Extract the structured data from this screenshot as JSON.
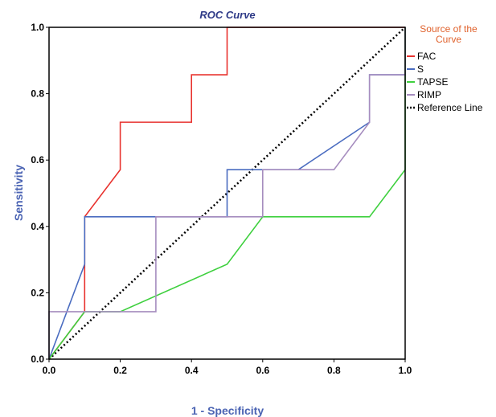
{
  "chart_data": {
    "type": "line",
    "title": "ROC Curve",
    "xlabel": "1 - Specificity",
    "ylabel": "Sensitivity",
    "xlim": [
      0,
      1
    ],
    "ylim": [
      0,
      1
    ],
    "x_ticks": [
      "0.0",
      "0.2",
      "0.4",
      "0.6",
      "0.8",
      "1.0"
    ],
    "y_ticks": [
      "0.0",
      "0.2",
      "0.4",
      "0.6",
      "0.8",
      "1.0"
    ],
    "grid": false,
    "legend": {
      "title_line1": "Source of the",
      "title_line2": "Curve",
      "placement": "right"
    },
    "colors": {
      "title": "#2e3a87",
      "axis_label": "#4a63b3",
      "legend_title": "#e0622d"
    },
    "series": [
      {
        "name": "FAC",
        "color": "#e8322e",
        "style": "solid",
        "points": [
          [
            0,
            0
          ],
          [
            0.1,
            0.143
          ],
          [
            0.1,
            0.429
          ],
          [
            0.2,
            0.571
          ],
          [
            0.2,
            0.714
          ],
          [
            0.4,
            0.714
          ],
          [
            0.4,
            0.857
          ],
          [
            0.5,
            0.857
          ],
          [
            0.5,
            1.0
          ],
          [
            1.0,
            1.0
          ]
        ]
      },
      {
        "name": "S",
        "color": "#4a6cc0",
        "style": "solid",
        "points": [
          [
            0,
            0
          ],
          [
            0.1,
            0.286
          ],
          [
            0.1,
            0.429
          ],
          [
            0.5,
            0.429
          ],
          [
            0.5,
            0.571
          ],
          [
            0.7,
            0.571
          ],
          [
            0.9,
            0.714
          ],
          [
            0.9,
            0.857
          ],
          [
            1.0,
            0.857
          ],
          [
            1.0,
            1.0
          ]
        ]
      },
      {
        "name": "TAPSE",
        "color": "#3fd03f",
        "style": "solid",
        "points": [
          [
            0,
            0
          ],
          [
            0.1,
            0.143
          ],
          [
            0.2,
            0.143
          ],
          [
            0.5,
            0.286
          ],
          [
            0.6,
            0.429
          ],
          [
            0.9,
            0.429
          ],
          [
            1.0,
            0.571
          ],
          [
            1.0,
            1.0
          ]
        ]
      },
      {
        "name": "RIMP",
        "color": "#a68dbf",
        "style": "solid",
        "points": [
          [
            0,
            0
          ],
          [
            0,
            0.143
          ],
          [
            0.3,
            0.143
          ],
          [
            0.3,
            0.429
          ],
          [
            0.6,
            0.429
          ],
          [
            0.6,
            0.571
          ],
          [
            0.8,
            0.571
          ],
          [
            0.9,
            0.714
          ],
          [
            0.9,
            0.857
          ],
          [
            1.0,
            0.857
          ],
          [
            1.0,
            1.0
          ]
        ]
      },
      {
        "name": "Reference Line",
        "color": "#000000",
        "style": "dotted",
        "points": [
          [
            0,
            0
          ],
          [
            1,
            1
          ]
        ]
      }
    ]
  }
}
